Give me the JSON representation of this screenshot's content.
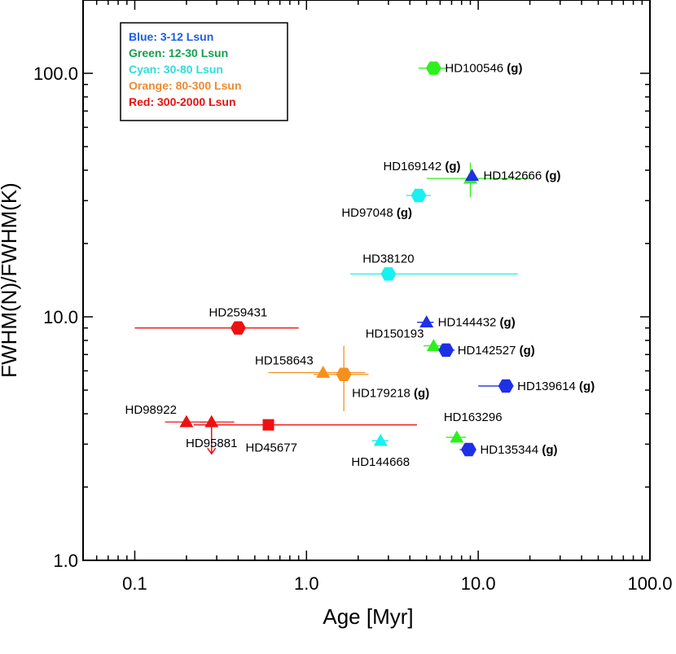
{
  "chart_data": {
    "type": "scatter",
    "title": "",
    "xlabel": "Age [Myr]",
    "ylabel": "FWHM(N)/FWHM(K)",
    "xscale": "log",
    "yscale": "log",
    "xlim": [
      0.05,
      100
    ],
    "ylim": [
      1,
      200
    ],
    "xticks": [
      {
        "value": 0.1,
        "label": "0.1"
      },
      {
        "value": 1,
        "label": "1.0"
      },
      {
        "value": 10,
        "label": "10.0"
      },
      {
        "value": 100,
        "label": "100.0"
      }
    ],
    "yticks": [
      {
        "value": 1,
        "label": "1.0"
      },
      {
        "value": 10,
        "label": "10.0"
      },
      {
        "value": 100,
        "label": "100.0"
      }
    ],
    "legend_position": "top-left",
    "legend": [
      {
        "label": "Blue: 3-12 Lsun",
        "color": "#1a5fe0"
      },
      {
        "label": "Green: 12-30 Lsun",
        "color": "#13a050"
      },
      {
        "label": "Cyan: 30-80 Lsun",
        "color": "#33dcdc"
      },
      {
        "label": "Orange: 80-300 Lsun",
        "color": "#f08a2e"
      },
      {
        "label": "Red: 300-2000 Lsun",
        "color": "#e81010"
      }
    ],
    "colors": {
      "blue": "#1f2fe6",
      "green": "#2df01c",
      "cyan": "#19f0f0",
      "orange": "#f5901e",
      "red": "#ee1111"
    },
    "points": [
      {
        "name": "HD100546",
        "g": true,
        "x": 5.5,
        "y": 105,
        "color": "green",
        "marker": "hexagon",
        "xerr": [
          4.5,
          6.5
        ],
        "label_pos": "right"
      },
      {
        "name": "HD169142",
        "g": true,
        "x": 9,
        "y": 37,
        "color": "green",
        "marker": "triangle",
        "xerr": [
          5,
          20
        ],
        "yerr": [
          31,
          43
        ],
        "label_pos": "upper-left"
      },
      {
        "name": "HD142666",
        "g": true,
        "x": 9.2,
        "y": 38,
        "color": "blue",
        "marker": "triangle",
        "label_pos": "right"
      },
      {
        "name": "HD97048",
        "g": true,
        "x": 4.5,
        "y": 31.5,
        "color": "cyan",
        "marker": "hexagon",
        "xerr": [
          3.8,
          5.3
        ],
        "label_pos": "below-left"
      },
      {
        "name": "HD38120",
        "g": false,
        "x": 3,
        "y": 15,
        "color": "cyan",
        "marker": "hexagon",
        "xerr": [
          1.8,
          17
        ],
        "label_pos": "above"
      },
      {
        "name": "HD144432",
        "g": true,
        "x": 5,
        "y": 9.5,
        "color": "blue",
        "marker": "triangle",
        "xerr": [
          4.4,
          5.5
        ],
        "label_pos": "right"
      },
      {
        "name": "HD259431",
        "g": false,
        "x": 0.4,
        "y": 9,
        "color": "red",
        "marker": "hexagon",
        "xerr": [
          0.1,
          0.9
        ],
        "label_pos": "above"
      },
      {
        "name": "HD150193",
        "g": false,
        "x": 5.5,
        "y": 7.6,
        "color": "green",
        "marker": "triangle",
        "xerr": [
          4.8,
          6.3
        ],
        "label_pos": "upper-left"
      },
      {
        "name": "HD142527",
        "g": true,
        "x": 6.5,
        "y": 7.3,
        "color": "blue",
        "marker": "hexagon",
        "xerr": [
          5.8,
          7.3
        ],
        "label_pos": "right"
      },
      {
        "name": "HD158643",
        "g": false,
        "x": 1.25,
        "y": 5.9,
        "color": "orange",
        "marker": "triangle",
        "xerr": [
          0.6,
          2.2
        ],
        "label_pos": "upper-left"
      },
      {
        "name": "HD179218",
        "g": true,
        "x": 1.65,
        "y": 5.8,
        "color": "orange",
        "marker": "hexagon",
        "xerr": [
          1.1,
          2.3
        ],
        "yerr": [
          4.1,
          7.6
        ],
        "label_pos": "lower-right"
      },
      {
        "name": "HD139614",
        "g": true,
        "x": 14.5,
        "y": 5.2,
        "color": "blue",
        "marker": "hexagon",
        "xerr": [
          10,
          15
        ],
        "label_pos": "right"
      },
      {
        "name": "HD98922",
        "g": false,
        "x": 0.2,
        "y": 3.7,
        "color": "red",
        "marker": "triangle",
        "xerr": [
          0.15,
          0.26
        ],
        "label_pos": "upper-left"
      },
      {
        "name": "HD95881",
        "g": false,
        "x": 0.28,
        "y": 3.7,
        "color": "red",
        "marker": "triangle",
        "xerr": [
          0.24,
          0.38
        ],
        "upper_limit": true,
        "label_pos": "below"
      },
      {
        "name": "HD45677",
        "g": false,
        "x": 0.6,
        "y": 3.6,
        "color": "red",
        "marker": "square",
        "xerr": [
          0.22,
          4.4
        ],
        "label_pos": "below-right"
      },
      {
        "name": "HD144668",
        "g": false,
        "x": 2.7,
        "y": 3.1,
        "color": "cyan",
        "marker": "triangle",
        "xerr": [
          2.4,
          3.0
        ],
        "label_pos": "below"
      },
      {
        "name": "HD163296",
        "g": false,
        "x": 7.5,
        "y": 3.2,
        "color": "green",
        "marker": "triangle",
        "xerr": [
          6.5,
          8.5
        ],
        "label_pos": "upper-right"
      },
      {
        "name": "HD135344",
        "g": true,
        "x": 8.8,
        "y": 2.85,
        "color": "blue",
        "marker": "hexagon",
        "xerr": [
          7.8,
          9.5
        ],
        "label_pos": "right"
      }
    ]
  }
}
